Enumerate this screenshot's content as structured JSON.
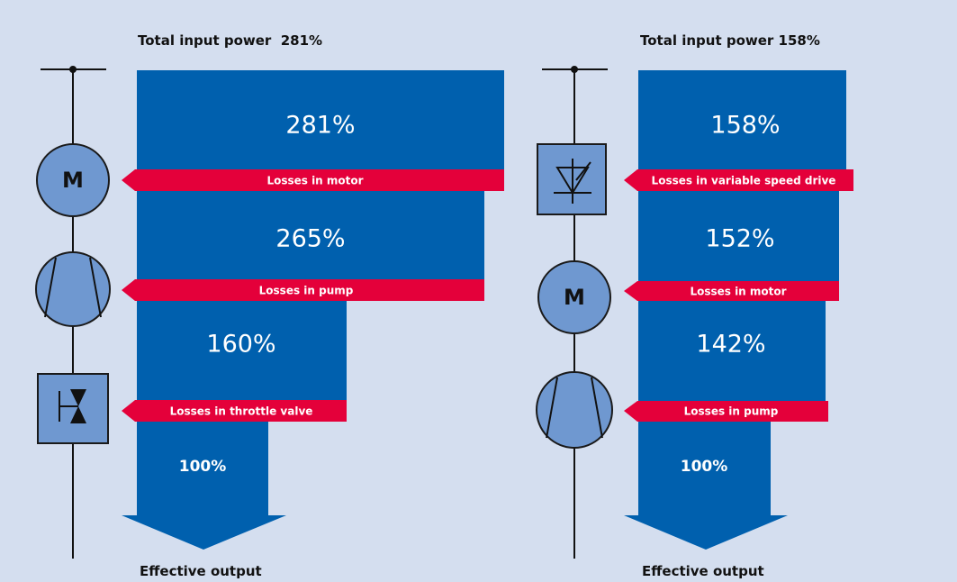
{
  "panels": [
    {
      "title": "Total input power  281%",
      "stages": [
        {
          "label": "281%",
          "loss": "Losses in motor"
        },
        {
          "label": "265%",
          "loss": "Losses in pump"
        },
        {
          "label": "160%",
          "loss": "Losses in throttle valve"
        }
      ],
      "output_label": "100%",
      "footer": "Effective output"
    },
    {
      "title": "Total input power 158%",
      "stages": [
        {
          "label": "158%",
          "loss": "Losses in variable speed drive"
        },
        {
          "label": "152%",
          "loss": "Losses in motor"
        },
        {
          "label": "142%",
          "loss": "Losses in pump"
        }
      ],
      "output_label": "100%",
      "footer": "Effective output"
    }
  ],
  "icons": {
    "motor": "M"
  }
}
